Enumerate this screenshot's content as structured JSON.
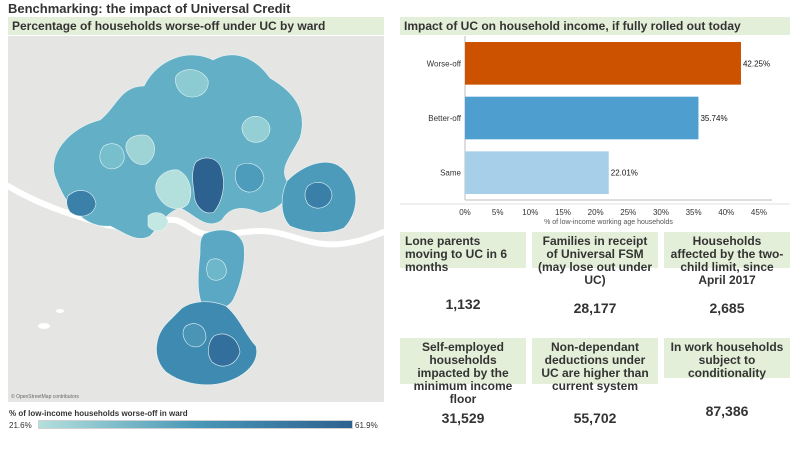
{
  "dashboard": {
    "title": "Benchmarking: the impact of Universal Credit"
  },
  "map": {
    "header": "Percentage of households worse-off under UC by ward",
    "attribution": "© OpenStreetMap contributors",
    "legend_title": "% of low-income households worse-off in ward",
    "legend_min": "21.6%",
    "legend_max": "61.9%",
    "legend_colors": [
      "#b3e0dc",
      "#4a98b8",
      "#2d6190"
    ]
  },
  "chart": {
    "header": "Impact of UC on household income, if fully rolled out today"
  },
  "chart_data": {
    "type": "bar",
    "orientation": "horizontal",
    "categories": [
      "Worse-off",
      "Better-off",
      "Same"
    ],
    "values": [
      42.25,
      35.74,
      22.01
    ],
    "value_labels": [
      "42.25%",
      "35.74%",
      "22.01%"
    ],
    "colors": [
      "#cc5200",
      "#4e9fd0",
      "#a8cfe9"
    ],
    "xlabel": "% of low-income working age households",
    "ylabel": "",
    "xlim": [
      0,
      47
    ],
    "xticks": [
      0,
      5,
      10,
      15,
      20,
      25,
      30,
      35,
      40,
      45
    ],
    "xtick_labels": [
      "0%",
      "5%",
      "10%",
      "15%",
      "20%",
      "25%",
      "30%",
      "35%",
      "40%",
      "45%"
    ]
  },
  "kpis": [
    {
      "label": "Lone parents moving to UC in 6 months",
      "value": "1,132"
    },
    {
      "label": "Families in receipt of Universal FSM (may lose out under UC)",
      "value": "28,177"
    },
    {
      "label": "Households affected by the two-child limit, since April 2017",
      "value": "2,685"
    },
    {
      "label": "Self-employed households impacted by the minimum income floor",
      "value": "31,529"
    },
    {
      "label": "Non-dependant deductions under UC are higher than current system",
      "value": "55,702"
    },
    {
      "label": "In work households subject to conditionality",
      "value": "87,386"
    }
  ]
}
